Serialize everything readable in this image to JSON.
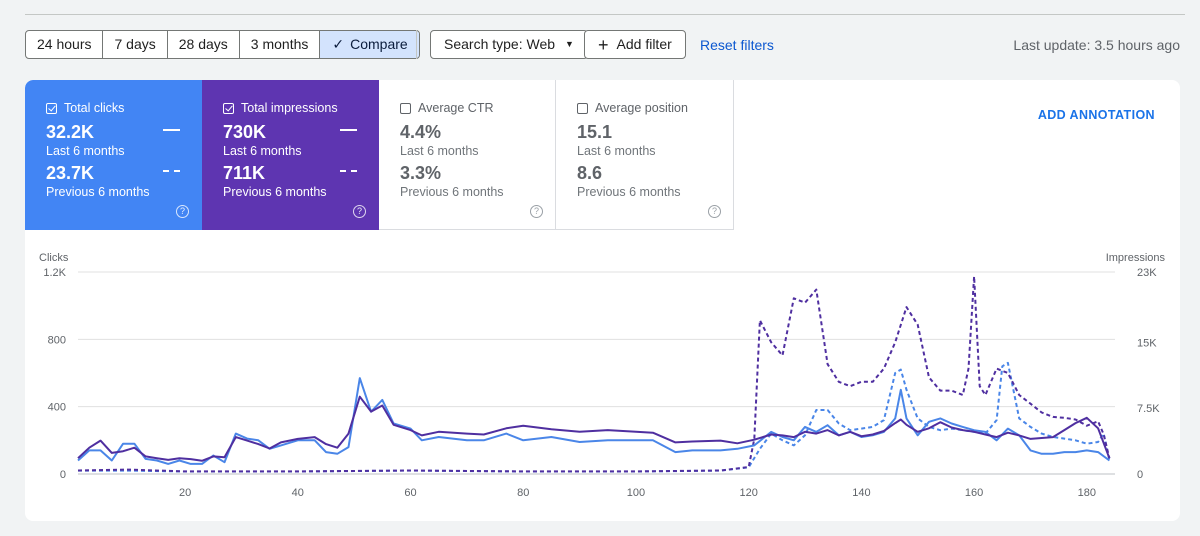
{
  "filters": {
    "ranges": [
      "24 hours",
      "7 days",
      "28 days",
      "3 months"
    ],
    "compare_label": "Compare",
    "search_type": "Search type: Web",
    "add_filter": "Add filter",
    "reset": "Reset filters",
    "last_update": "Last update: 3.5 hours ago"
  },
  "metrics": [
    {
      "title": "Total clicks",
      "checked": true,
      "current": "32.2K",
      "current_label": "Last 6 months",
      "previous": "23.7K",
      "previous_label": "Previous 6 months"
    },
    {
      "title": "Total impressions",
      "checked": true,
      "current": "730K",
      "current_label": "Last 6 months",
      "previous": "711K",
      "previous_label": "Previous 6 months"
    },
    {
      "title": "Average CTR",
      "checked": false,
      "current": "4.4%",
      "current_label": "Last 6 months",
      "previous": "3.3%",
      "previous_label": "Previous 6 months"
    },
    {
      "title": "Average position",
      "checked": false,
      "current": "15.1",
      "current_label": "Last 6 months",
      "previous": "8.6",
      "previous_label": "Previous 6 months"
    }
  ],
  "annotation_button": "ADD ANNOTATION",
  "colors": {
    "clicks": "#4a86e8",
    "impressions": "#4f2fa0",
    "grid": "#e0e0e0"
  },
  "chart_data": {
    "type": "line",
    "x_range": [
      1,
      185
    ],
    "x_ticks": [
      20,
      40,
      60,
      80,
      100,
      120,
      140,
      160,
      180
    ],
    "left_axis": {
      "label": "Clicks",
      "range": [
        0,
        1200
      ],
      "ticks": [
        0,
        400,
        800,
        1200
      ],
      "tick_labels": [
        "0",
        "400",
        "800",
        "1.2K"
      ]
    },
    "right_axis": {
      "label": "Impressions",
      "range": [
        0,
        23000
      ],
      "ticks": [
        0,
        7500,
        15000,
        23000
      ],
      "tick_labels": [
        "0",
        "7.5K",
        "15K",
        "23K"
      ]
    },
    "series": [
      {
        "name": "Clicks (last 6 months)",
        "axis": "left",
        "style": "solid",
        "color": "#4a86e8",
        "points": [
          [
            1,
            80
          ],
          [
            3,
            140
          ],
          [
            5,
            140
          ],
          [
            7,
            80
          ],
          [
            9,
            180
          ],
          [
            11,
            180
          ],
          [
            13,
            90
          ],
          [
            15,
            80
          ],
          [
            17,
            60
          ],
          [
            19,
            80
          ],
          [
            21,
            60
          ],
          [
            23,
            60
          ],
          [
            25,
            110
          ],
          [
            27,
            70
          ],
          [
            29,
            240
          ],
          [
            31,
            210
          ],
          [
            33,
            200
          ],
          [
            35,
            150
          ],
          [
            37,
            170
          ],
          [
            40,
            200
          ],
          [
            43,
            200
          ],
          [
            45,
            130
          ],
          [
            47,
            120
          ],
          [
            49,
            160
          ],
          [
            51,
            570
          ],
          [
            53,
            370
          ],
          [
            55,
            440
          ],
          [
            57,
            300
          ],
          [
            60,
            270
          ],
          [
            62,
            200
          ],
          [
            65,
            220
          ],
          [
            70,
            200
          ],
          [
            73,
            200
          ],
          [
            77,
            240
          ],
          [
            80,
            200
          ],
          [
            85,
            220
          ],
          [
            90,
            190
          ],
          [
            95,
            200
          ],
          [
            100,
            200
          ],
          [
            103,
            200
          ],
          [
            107,
            130
          ],
          [
            110,
            140
          ],
          [
            115,
            140
          ],
          [
            118,
            150
          ],
          [
            121,
            170
          ],
          [
            124,
            250
          ],
          [
            126,
            220
          ],
          [
            128,
            200
          ],
          [
            130,
            280
          ],
          [
            132,
            250
          ],
          [
            134,
            290
          ],
          [
            136,
            230
          ],
          [
            138,
            250
          ],
          [
            140,
            220
          ],
          [
            142,
            230
          ],
          [
            144,
            250
          ],
          [
            146,
            330
          ],
          [
            147,
            500
          ],
          [
            148,
            330
          ],
          [
            150,
            230
          ],
          [
            152,
            310
          ],
          [
            154,
            330
          ],
          [
            156,
            300
          ],
          [
            158,
            280
          ],
          [
            160,
            260
          ],
          [
            162,
            250
          ],
          [
            164,
            200
          ],
          [
            166,
            270
          ],
          [
            168,
            230
          ],
          [
            170,
            140
          ],
          [
            172,
            120
          ],
          [
            174,
            120
          ],
          [
            176,
            130
          ],
          [
            178,
            130
          ],
          [
            180,
            140
          ],
          [
            182,
            130
          ],
          [
            184,
            80
          ]
        ]
      },
      {
        "name": "Impressions (last 6 months)",
        "axis": "right",
        "style": "solid",
        "color": "#4f2fa0",
        "points": [
          [
            1,
            1800
          ],
          [
            3,
            3000
          ],
          [
            5,
            3800
          ],
          [
            7,
            2400
          ],
          [
            9,
            2600
          ],
          [
            11,
            3000
          ],
          [
            13,
            2000
          ],
          [
            15,
            1800
          ],
          [
            17,
            1600
          ],
          [
            19,
            1800
          ],
          [
            21,
            1700
          ],
          [
            23,
            1500
          ],
          [
            25,
            2000
          ],
          [
            27,
            1900
          ],
          [
            29,
            4200
          ],
          [
            31,
            3800
          ],
          [
            33,
            3400
          ],
          [
            35,
            2900
          ],
          [
            37,
            3600
          ],
          [
            40,
            4000
          ],
          [
            43,
            4200
          ],
          [
            45,
            3400
          ],
          [
            47,
            3000
          ],
          [
            49,
            4600
          ],
          [
            51,
            8800
          ],
          [
            53,
            7100
          ],
          [
            55,
            7800
          ],
          [
            57,
            5600
          ],
          [
            60,
            5000
          ],
          [
            62,
            4400
          ],
          [
            65,
            4800
          ],
          [
            70,
            4600
          ],
          [
            73,
            4500
          ],
          [
            77,
            5200
          ],
          [
            80,
            5500
          ],
          [
            85,
            5100
          ],
          [
            90,
            4800
          ],
          [
            95,
            5000
          ],
          [
            100,
            4800
          ],
          [
            103,
            4700
          ],
          [
            107,
            3600
          ],
          [
            110,
            3700
          ],
          [
            115,
            3800
          ],
          [
            118,
            3500
          ],
          [
            121,
            3900
          ],
          [
            124,
            4500
          ],
          [
            126,
            4400
          ],
          [
            128,
            4200
          ],
          [
            130,
            4800
          ],
          [
            132,
            4600
          ],
          [
            134,
            5000
          ],
          [
            136,
            4400
          ],
          [
            138,
            4800
          ],
          [
            140,
            4300
          ],
          [
            142,
            4500
          ],
          [
            144,
            4900
          ],
          [
            146,
            5800
          ],
          [
            147,
            6200
          ],
          [
            148,
            5600
          ],
          [
            150,
            4800
          ],
          [
            152,
            5200
          ],
          [
            154,
            5900
          ],
          [
            156,
            5300
          ],
          [
            158,
            5000
          ],
          [
            160,
            4800
          ],
          [
            162,
            4500
          ],
          [
            164,
            4200
          ],
          [
            166,
            4700
          ],
          [
            168,
            4400
          ],
          [
            170,
            4000
          ],
          [
            172,
            4100
          ],
          [
            174,
            4200
          ],
          [
            176,
            5000
          ],
          [
            178,
            5800
          ],
          [
            180,
            6400
          ],
          [
            182,
            5200
          ],
          [
            184,
            1800
          ]
        ]
      },
      {
        "name": "Clicks (previous 6 months)",
        "axis": "left",
        "style": "dashed",
        "color": "#4a86e8",
        "points": [
          [
            1,
            20
          ],
          [
            10,
            20
          ],
          [
            20,
            15
          ],
          [
            40,
            15
          ],
          [
            60,
            20
          ],
          [
            80,
            15
          ],
          [
            100,
            15
          ],
          [
            115,
            20
          ],
          [
            120,
            40
          ],
          [
            122,
            150
          ],
          [
            124,
            240
          ],
          [
            126,
            200
          ],
          [
            128,
            170
          ],
          [
            130,
            230
          ],
          [
            132,
            380
          ],
          [
            134,
            380
          ],
          [
            136,
            300
          ],
          [
            138,
            260
          ],
          [
            140,
            270
          ],
          [
            142,
            280
          ],
          [
            144,
            320
          ],
          [
            146,
            600
          ],
          [
            147,
            620
          ],
          [
            148,
            500
          ],
          [
            150,
            330
          ],
          [
            152,
            280
          ],
          [
            154,
            260
          ],
          [
            156,
            270
          ],
          [
            158,
            260
          ],
          [
            160,
            250
          ],
          [
            162,
            240
          ],
          [
            164,
            320
          ],
          [
            165,
            640
          ],
          [
            166,
            660
          ],
          [
            168,
            330
          ],
          [
            170,
            280
          ],
          [
            172,
            240
          ],
          [
            174,
            220
          ],
          [
            176,
            210
          ],
          [
            178,
            200
          ],
          [
            180,
            180
          ],
          [
            182,
            190
          ],
          [
            183,
            240
          ],
          [
            184,
            80
          ]
        ]
      },
      {
        "name": "Impressions (previous 6 months)",
        "axis": "right",
        "style": "dashed",
        "color": "#4f2fa0",
        "points": [
          [
            1,
            400
          ],
          [
            10,
            500
          ],
          [
            20,
            300
          ],
          [
            40,
            300
          ],
          [
            60,
            400
          ],
          [
            80,
            300
          ],
          [
            100,
            300
          ],
          [
            115,
            400
          ],
          [
            120,
            800
          ],
          [
            121,
            4000
          ],
          [
            122,
            17500
          ],
          [
            124,
            15000
          ],
          [
            126,
            13500
          ],
          [
            128,
            20000
          ],
          [
            130,
            19500
          ],
          [
            132,
            21000
          ],
          [
            134,
            12500
          ],
          [
            136,
            10500
          ],
          [
            138,
            10000
          ],
          [
            140,
            10500
          ],
          [
            142,
            10500
          ],
          [
            144,
            12000
          ],
          [
            146,
            15000
          ],
          [
            148,
            19000
          ],
          [
            150,
            17000
          ],
          [
            152,
            11000
          ],
          [
            154,
            9500
          ],
          [
            156,
            9500
          ],
          [
            158,
            9000
          ],
          [
            159,
            12000
          ],
          [
            160,
            22500
          ],
          [
            161,
            10000
          ],
          [
            162,
            9000
          ],
          [
            164,
            12000
          ],
          [
            166,
            11500
          ],
          [
            168,
            9000
          ],
          [
            170,
            8000
          ],
          [
            172,
            7000
          ],
          [
            174,
            6500
          ],
          [
            176,
            6400
          ],
          [
            178,
            6200
          ],
          [
            180,
            5500
          ],
          [
            182,
            6000
          ],
          [
            183,
            4500
          ],
          [
            184,
            1800
          ]
        ]
      }
    ]
  }
}
